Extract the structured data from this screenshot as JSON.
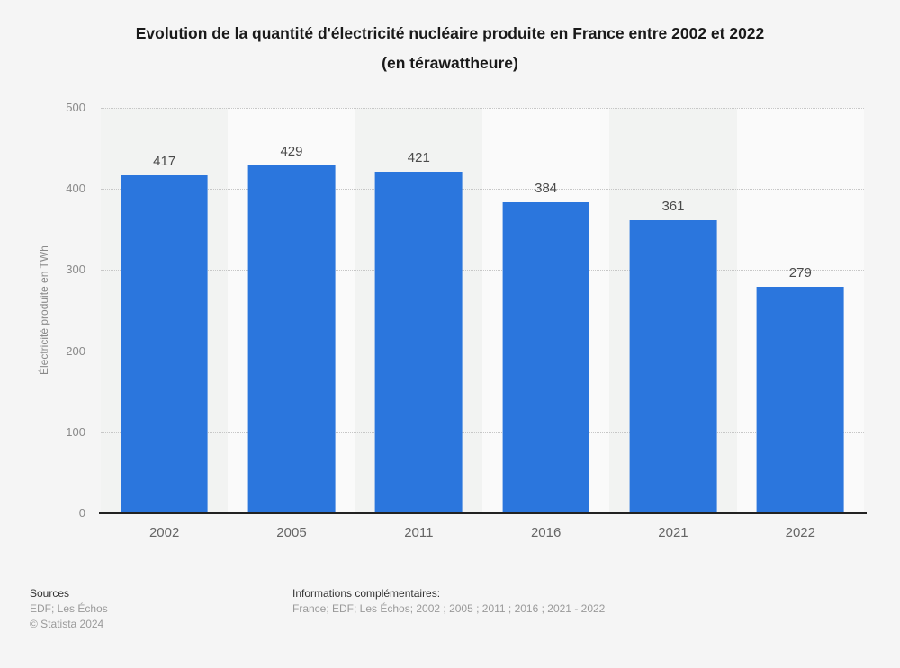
{
  "ui": {
    "title_line1": "Evolution de la quantité d'électricité nucléaire produite en France entre 2002 et 2022",
    "title_line2": "(en térawattheure)",
    "footer": {
      "sources_label": "Sources",
      "sources_value": "EDF; Les Échos",
      "copyright": "© Statista 2024",
      "info_label": "Informations complémentaires:",
      "info_value": "France; EDF; Les Échos; 2002 ; 2005 ; 2011 ; 2016 ; 2021 - 2022"
    }
  },
  "chart_data": {
    "type": "bar",
    "title": "Evolution de la quantité d'électricité nucléaire produite en France entre 2002 et 2022 (en térawattheure)",
    "categories": [
      "2002",
      "2005",
      "2011",
      "2016",
      "2021",
      "2022"
    ],
    "values": [
      417,
      429,
      421,
      384,
      361,
      279
    ],
    "xlabel": "",
    "ylabel": "Électricité produite en TWh",
    "ylim": [
      0,
      500
    ],
    "yticks": [
      0,
      100,
      200,
      300,
      400,
      500
    ],
    "grid": "horizontal-dotted",
    "legend": "none",
    "bar_color": "#2b76dd",
    "colors": {
      "background": "#f5f5f5",
      "band_odd": "#f2f3f2",
      "band_even": "#fafafa",
      "gridline": "#c7c7c7",
      "axis_line": "#222222",
      "value_label": "#4a4a4a",
      "tick_label": "#8a8a8a",
      "category_label": "#666666"
    }
  }
}
